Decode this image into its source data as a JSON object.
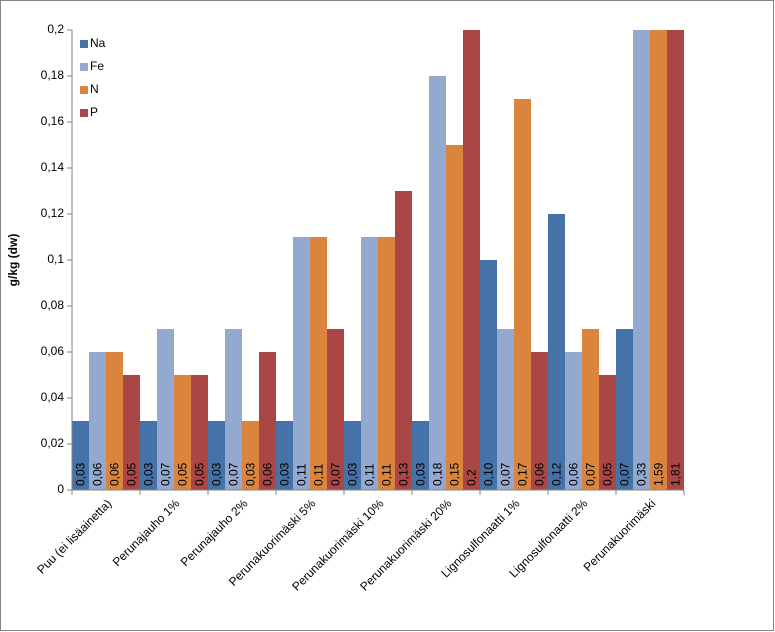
{
  "chart_data": {
    "type": "bar",
    "y_label": "g/kg (dw)",
    "categories": [
      "Puu (ei lisäainetta)",
      "Perunajauho 1%",
      "Perunajauho 2%",
      "Perunakuorimäski 5%",
      "Perunakuorimäski 10%",
      "Perunakuorimäski 20%",
      "Lignosulfonaatti 1%",
      "Lignosulfonaatti 2%",
      "Perunakuorimäski"
    ],
    "series": [
      {
        "name": "Na",
        "color": "#4572a7",
        "values": [
          0.03,
          0.03,
          0.03,
          0.03,
          0.03,
          0.03,
          0.1,
          0.12,
          0.07
        ],
        "value_labels": [
          "0,03",
          "0,03",
          "0,03",
          "0,03",
          "0,03",
          "0,03",
          "0,10",
          "0,12",
          "0,07"
        ]
      },
      {
        "name": "Fe",
        "color": "#93a9cf",
        "values": [
          0.06,
          0.07,
          0.07,
          0.11,
          0.11,
          0.18,
          0.07,
          0.06,
          0.33
        ],
        "value_labels": [
          "0,06",
          "0,07",
          "0,07",
          "0,11",
          "0,11",
          "0,18",
          "0,07",
          "0,06",
          "0,33"
        ]
      },
      {
        "name": "N",
        "color": "#db843d",
        "values": [
          0.06,
          0.05,
          0.03,
          0.11,
          0.11,
          0.15,
          0.17,
          0.07,
          1.59
        ],
        "value_labels": [
          "0,06",
          "0,05",
          "0,03",
          "0,11",
          "0,11",
          "0,15",
          "0,17",
          "0,07",
          "1,59"
        ]
      },
      {
        "name": "P",
        "color": "#aa4643",
        "values": [
          0.05,
          0.05,
          0.06,
          0.07,
          0.13,
          0.2,
          0.06,
          0.05,
          1.81
        ],
        "value_labels": [
          "0,05",
          "0,05",
          "0,06",
          "0,07",
          "0,13",
          "0,2",
          "0,06",
          "0,05",
          "1,81"
        ]
      }
    ],
    "ylim": [
      0,
      0.2
    ],
    "yticks": [
      {
        "value": 0,
        "label": "0"
      },
      {
        "value": 0.02,
        "label": "0,02"
      },
      {
        "value": 0.04,
        "label": "0,04"
      },
      {
        "value": 0.06,
        "label": "0,06"
      },
      {
        "value": 0.08,
        "label": "0,08"
      },
      {
        "value": 0.1,
        "label": "0,1"
      },
      {
        "value": 0.12,
        "label": "0,12"
      },
      {
        "value": 0.14,
        "label": "0,14"
      },
      {
        "value": 0.16,
        "label": "0,16"
      },
      {
        "value": 0.18,
        "label": "0,18"
      },
      {
        "value": 0.2,
        "label": "0,2"
      }
    ],
    "grid": false,
    "legend": "top-left"
  }
}
